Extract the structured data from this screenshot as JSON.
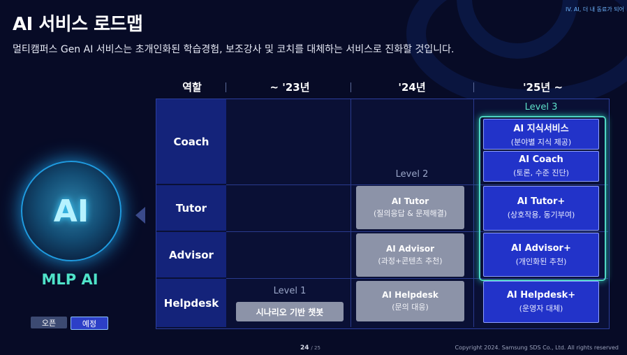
{
  "header": {
    "chapter": "IV. AI, 더 내 동료가 되어",
    "title": "AI 서비스 로드맵",
    "subtitle": "멀티캠퍼스 Gen AI 서비스는 초개인화된 학습경험, 보조강사 및 코치를 대체하는 서비스로 진화할 것입니다."
  },
  "table": {
    "columns": [
      "역할",
      "~ '23년",
      "'24년",
      "'25년 ~"
    ],
    "rows": [
      "Coach",
      "Tutor",
      "Advisor",
      "Helpdesk"
    ],
    "levels": {
      "level1": "Level 1",
      "level2": "Level 2",
      "level3": "Level 3"
    },
    "y2023": {
      "helpdesk": {
        "title": "시나리오 기반 챗봇"
      }
    },
    "y2024": {
      "tutor": {
        "title": "AI Tutor",
        "desc": "(질의응답 & 문제해결)"
      },
      "advisor": {
        "title": "AI Advisor",
        "desc": "(과정+콘텐츠 추천)"
      },
      "helpdesk": {
        "title": "AI Helpdesk",
        "desc": "(문의 대응)"
      }
    },
    "y2025": {
      "knowledge": {
        "title": "AI 지식서비스",
        "desc": "(분야별 지식 제공)"
      },
      "coach": {
        "title": "AI Coach",
        "desc": "(토론, 수준 진단)"
      },
      "tutor": {
        "title": "AI Tutor+",
        "desc": "(상호작용, 동기부여)"
      },
      "advisor": {
        "title": "AI Advisor+",
        "desc": "(개인화된 추천)"
      },
      "helpdesk": {
        "title": "AI Helpdesk+",
        "desc": "(운영자 대체)"
      }
    }
  },
  "left": {
    "circle_label": "AI",
    "product_name": "MLP AI",
    "tags": {
      "open": "오픈",
      "planned": "예정"
    }
  },
  "footer": {
    "page_current": "24",
    "page_total": "/ 25",
    "copyright": "Copyright 2024. Samsung SDS Co., Ltd. All rights reserved"
  },
  "colors": {
    "background": "#070b26",
    "row_label": "#14237a",
    "planned_box": "#2233c9",
    "open_box": "#8c93a8",
    "accent_teal": "#4fe3c9"
  }
}
